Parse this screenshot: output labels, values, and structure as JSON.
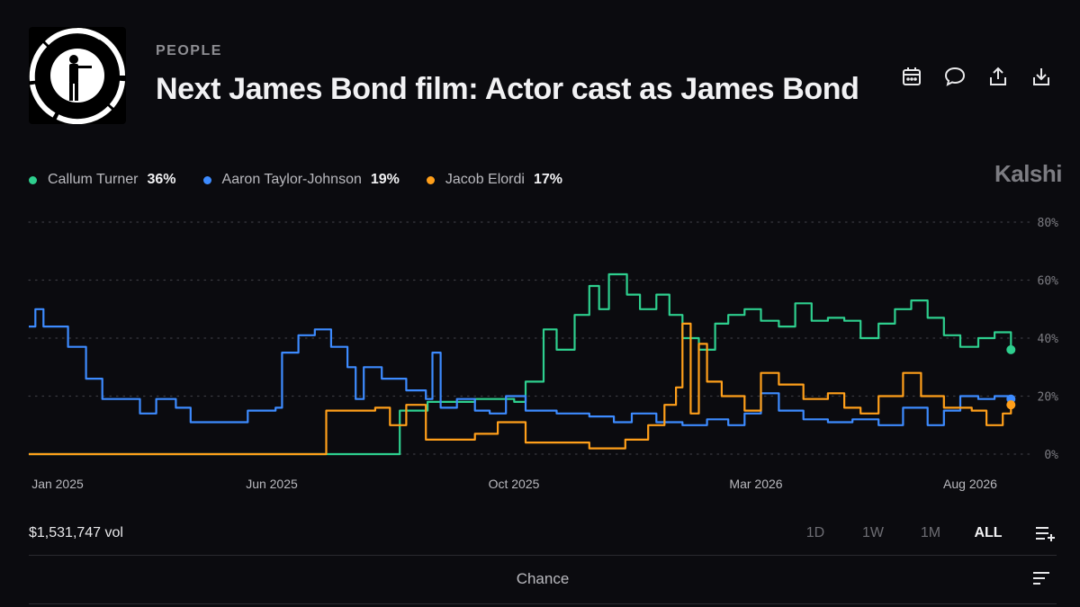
{
  "header": {
    "category": "PEOPLE",
    "title": "Next James Bond film: Actor cast as James Bond",
    "logo_icon": "james-bond-gun-barrel-logo"
  },
  "toolbar": {
    "icons": [
      "calendar-icon",
      "comment-icon",
      "share-icon",
      "download-icon"
    ]
  },
  "brand": "Kalshi",
  "legend": [
    {
      "name": "Callum Turner",
      "value": "36%",
      "color": "#2ecf8e"
    },
    {
      "name": "Aaron Taylor-Johnson",
      "value": "19%",
      "color": "#3d8bff"
    },
    {
      "name": "Jacob Elordi",
      "value": "17%",
      "color": "#ff9f1a"
    }
  ],
  "footer": {
    "volume": "$1,531,747 vol",
    "ranges": [
      "1D",
      "1W",
      "1M",
      "ALL"
    ],
    "active_range": "ALL",
    "chance_label": "Chance"
  },
  "chart_data": {
    "type": "line",
    "y_axis": {
      "ticks": [
        "80%",
        "60%",
        "40%",
        "20%",
        "0%"
      ],
      "ylim": [
        0,
        80
      ],
      "position": "right"
    },
    "x_axis": {
      "tick_labels": [
        "Jan 2025",
        "Jun 2025",
        "Oct 2025",
        "Mar 2026",
        "Aug 2026"
      ],
      "xlim": [
        "2025-01-01",
        "2026-09-01"
      ]
    },
    "grid": "horizontal-dotted",
    "series": [
      {
        "name": "Callum Turner",
        "color": "#2ecf8e",
        "points": [
          [
            "2025-01-01",
            0
          ],
          [
            "2025-08-15",
            0
          ],
          [
            "2025-08-16",
            15
          ],
          [
            "2025-09-01",
            15
          ],
          [
            "2025-09-02",
            18
          ],
          [
            "2025-10-01",
            19
          ],
          [
            "2025-10-25",
            18
          ],
          [
            "2025-11-01",
            25
          ],
          [
            "2025-11-12",
            43
          ],
          [
            "2025-11-20",
            36
          ],
          [
            "2025-12-01",
            48
          ],
          [
            "2025-12-10",
            58
          ],
          [
            "2025-12-16",
            50
          ],
          [
            "2025-12-22",
            62
          ],
          [
            "2026-01-02",
            55
          ],
          [
            "2026-01-10",
            50
          ],
          [
            "2026-01-20",
            55
          ],
          [
            "2026-01-28",
            48
          ],
          [
            "2026-02-05",
            40
          ],
          [
            "2026-02-15",
            36
          ],
          [
            "2026-02-25",
            45
          ],
          [
            "2026-03-05",
            48
          ],
          [
            "2026-03-15",
            50
          ],
          [
            "2026-03-25",
            46
          ],
          [
            "2026-04-05",
            44
          ],
          [
            "2026-04-15",
            52
          ],
          [
            "2026-04-25",
            46
          ],
          [
            "2026-05-05",
            47
          ],
          [
            "2026-05-15",
            46
          ],
          [
            "2026-05-25",
            40
          ],
          [
            "2026-06-05",
            45
          ],
          [
            "2026-06-15",
            50
          ],
          [
            "2026-06-25",
            53
          ],
          [
            "2026-07-05",
            47
          ],
          [
            "2026-07-15",
            41
          ],
          [
            "2026-07-25",
            37
          ],
          [
            "2026-08-05",
            40
          ],
          [
            "2026-08-15",
            42
          ],
          [
            "2026-08-25",
            36
          ]
        ]
      },
      {
        "name": "Aaron Taylor-Johnson",
        "color": "#3d8bff",
        "points": [
          [
            "2025-01-01",
            44
          ],
          [
            "2025-01-05",
            50
          ],
          [
            "2025-01-10",
            44
          ],
          [
            "2025-01-25",
            37
          ],
          [
            "2025-02-05",
            26
          ],
          [
            "2025-02-15",
            19
          ],
          [
            "2025-03-01",
            19
          ],
          [
            "2025-03-10",
            14
          ],
          [
            "2025-03-20",
            19
          ],
          [
            "2025-04-01",
            16
          ],
          [
            "2025-04-10",
            11
          ],
          [
            "2025-05-01",
            11
          ],
          [
            "2025-05-15",
            15
          ],
          [
            "2025-06-01",
            16
          ],
          [
            "2025-06-05",
            35
          ],
          [
            "2025-06-15",
            41
          ],
          [
            "2025-06-25",
            43
          ],
          [
            "2025-07-05",
            37
          ],
          [
            "2025-07-15",
            30
          ],
          [
            "2025-07-20",
            19
          ],
          [
            "2025-07-25",
            30
          ],
          [
            "2025-08-05",
            26
          ],
          [
            "2025-08-20",
            22
          ],
          [
            "2025-09-01",
            19
          ],
          [
            "2025-09-05",
            35
          ],
          [
            "2025-09-10",
            16
          ],
          [
            "2025-09-20",
            19
          ],
          [
            "2025-10-01",
            15
          ],
          [
            "2025-10-10",
            14
          ],
          [
            "2025-10-20",
            20
          ],
          [
            "2025-11-01",
            15
          ],
          [
            "2025-11-20",
            14
          ],
          [
            "2025-12-10",
            13
          ],
          [
            "2025-12-25",
            11
          ],
          [
            "2026-01-05",
            14
          ],
          [
            "2026-01-20",
            11
          ],
          [
            "2026-02-05",
            10
          ],
          [
            "2026-02-20",
            12
          ],
          [
            "2026-03-05",
            10
          ],
          [
            "2026-03-15",
            14
          ],
          [
            "2026-03-25",
            21
          ],
          [
            "2026-04-05",
            15
          ],
          [
            "2026-04-20",
            12
          ],
          [
            "2026-05-05",
            11
          ],
          [
            "2026-05-20",
            12
          ],
          [
            "2026-06-05",
            10
          ],
          [
            "2026-06-20",
            16
          ],
          [
            "2026-07-05",
            10
          ],
          [
            "2026-07-15",
            15
          ],
          [
            "2026-07-25",
            20
          ],
          [
            "2026-08-05",
            19
          ],
          [
            "2026-08-15",
            20
          ],
          [
            "2026-08-25",
            19
          ]
        ]
      },
      {
        "name": "Jacob Elordi",
        "color": "#ff9f1a",
        "points": [
          [
            "2025-01-01",
            0
          ],
          [
            "2025-07-01",
            0
          ],
          [
            "2025-07-02",
            15
          ],
          [
            "2025-08-01",
            16
          ],
          [
            "2025-08-10",
            10
          ],
          [
            "2025-08-20",
            17
          ],
          [
            "2025-09-01",
            5
          ],
          [
            "2025-10-01",
            7
          ],
          [
            "2025-10-15",
            11
          ],
          [
            "2025-11-01",
            4
          ],
          [
            "2025-11-20",
            4
          ],
          [
            "2025-12-10",
            2
          ],
          [
            "2026-01-01",
            5
          ],
          [
            "2026-01-15",
            10
          ],
          [
            "2026-01-25",
            17
          ],
          [
            "2026-02-01",
            23
          ],
          [
            "2026-02-05",
            45
          ],
          [
            "2026-02-10",
            14
          ],
          [
            "2026-02-15",
            38
          ],
          [
            "2026-02-20",
            25
          ],
          [
            "2026-03-01",
            20
          ],
          [
            "2026-03-15",
            15
          ],
          [
            "2026-03-25",
            28
          ],
          [
            "2026-04-05",
            24
          ],
          [
            "2026-04-20",
            19
          ],
          [
            "2026-05-05",
            21
          ],
          [
            "2026-05-15",
            16
          ],
          [
            "2026-05-25",
            14
          ],
          [
            "2026-06-05",
            20
          ],
          [
            "2026-06-20",
            28
          ],
          [
            "2026-07-01",
            20
          ],
          [
            "2026-07-15",
            16
          ],
          [
            "2026-08-01",
            15
          ],
          [
            "2026-08-10",
            10
          ],
          [
            "2026-08-20",
            14
          ],
          [
            "2026-08-25",
            17
          ]
        ]
      }
    ]
  }
}
